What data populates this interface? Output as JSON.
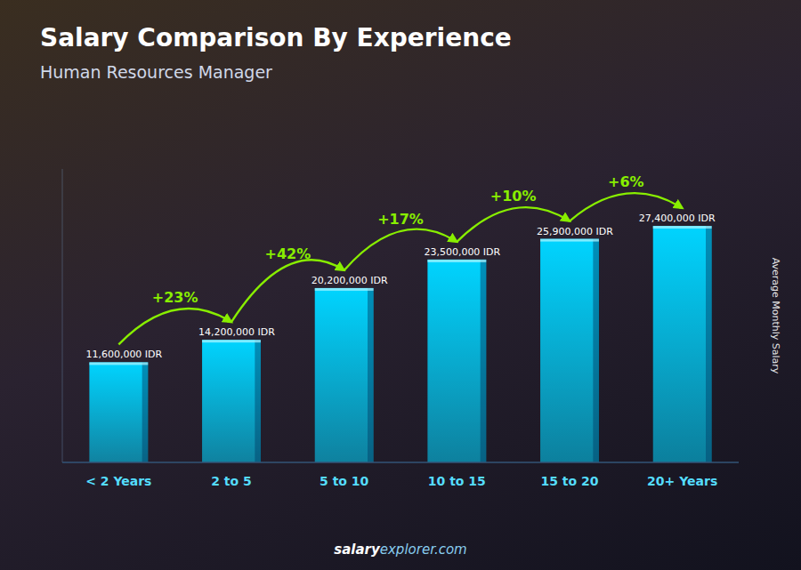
{
  "chart_data": {
    "type": "bar",
    "title": "Salary Comparison By Experience",
    "subtitle": "Human Resources Manager",
    "ylabel": "Average Monthly Salary",
    "categories": [
      "< 2 Years",
      "2 to 5",
      "5 to 10",
      "10 to 15",
      "15 to 20",
      "20+ Years"
    ],
    "values": [
      11600000,
      14200000,
      20200000,
      23500000,
      25900000,
      27400000
    ],
    "value_labels": [
      "11,600,000 IDR",
      "14,200,000 IDR",
      "20,200,000 IDR",
      "23,500,000 IDR",
      "25,900,000 IDR",
      "27,400,000 IDR"
    ],
    "data_labels": true,
    "color": "#00d4ff",
    "ylim": [
      0,
      34000000
    ],
    "grid": false,
    "tick_labels": "x",
    "annotations": [
      {
        "text": "+23%",
        "color": "#88ee00"
      },
      {
        "text": "+42%",
        "color": "#88ee00"
      },
      {
        "text": "+17%",
        "color": "#88ee00"
      },
      {
        "text": "+10%",
        "color": "#88ee00"
      },
      {
        "text": "+6%",
        "color": "#88ee00"
      }
    ],
    "footer": [
      "salary",
      "explorer.com"
    ]
  }
}
